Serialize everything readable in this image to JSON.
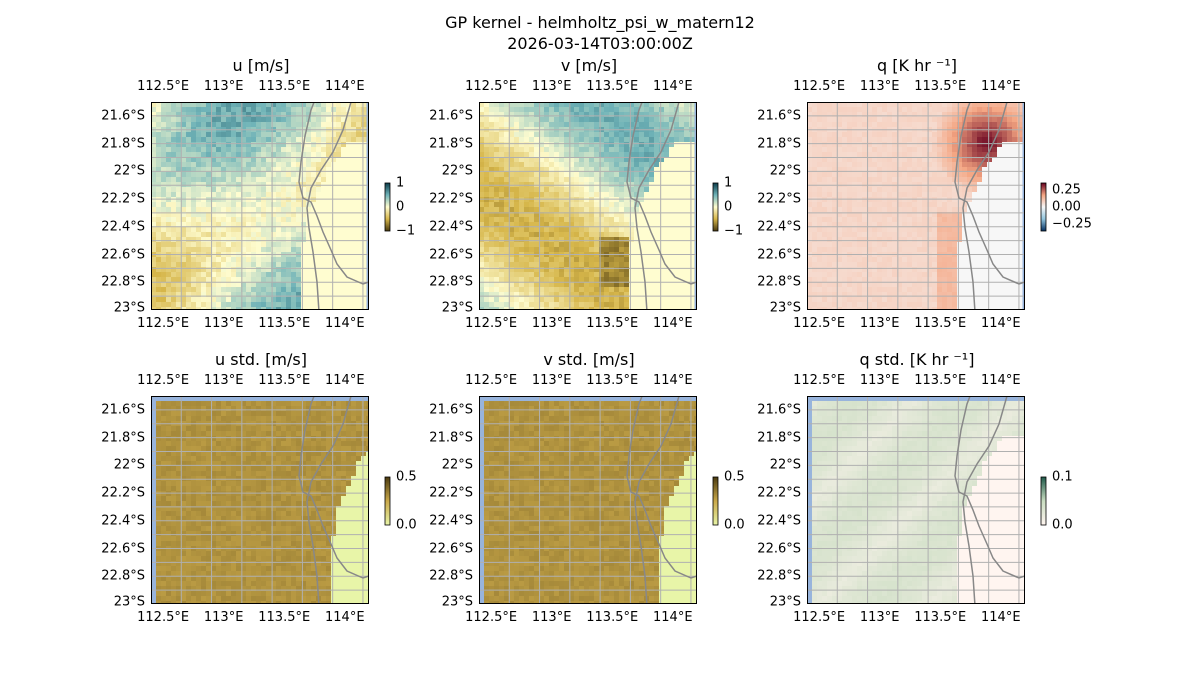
{
  "figure": {
    "title_line1": "GP kernel - helmholtz_psi_w_matern12",
    "title_line2": "2026-03-14T03:00:00Z"
  },
  "axes": {
    "lon_labels": [
      "112.5°E",
      "113°E",
      "113.5°E",
      "114°E"
    ],
    "lon_values": [
      112.5,
      113.0,
      113.5,
      114.0
    ],
    "lat_labels": [
      "21.6°S",
      "21.8°S",
      "22°S",
      "22.2°S",
      "22.4°S",
      "22.6°S",
      "22.8°S",
      "23°S"
    ],
    "lat_values": [
      -21.6,
      -21.8,
      -22.0,
      -22.2,
      -22.4,
      -22.6,
      -22.8,
      -23.0
    ],
    "lon_range": [
      112.4,
      114.2
    ],
    "lat_range": [
      -23.0,
      -21.5
    ],
    "gridlines": true
  },
  "panels": [
    {
      "id": "u",
      "title": "u [m/s]",
      "field": "u",
      "colorbar": {
        "ticks": [
          "1",
          "0",
          "−1"
        ],
        "tick_values": [
          1,
          0,
          -1
        ],
        "range": [
          -1,
          1
        ],
        "colors": [
          "#0b3c4a",
          "#6fb3b8",
          "#fffdd0",
          "#d6b64a",
          "#4a3a10"
        ]
      }
    },
    {
      "id": "v",
      "title": "v [m/s]",
      "field": "v",
      "colorbar": {
        "ticks": [
          "1",
          "0",
          "−1"
        ],
        "tick_values": [
          1,
          0,
          -1
        ],
        "range": [
          -1,
          1
        ],
        "colors": [
          "#0b3c4a",
          "#6fb3b8",
          "#fffdd0",
          "#d6b64a",
          "#4a3a10"
        ]
      }
    },
    {
      "id": "q",
      "title": "q [K hr ⁻¹]",
      "field": "q",
      "colorbar": {
        "ticks": [
          "0.25",
          "0.00",
          "−0.25"
        ],
        "tick_values": [
          0.25,
          0,
          -0.25
        ],
        "range": [
          -0.35,
          0.35
        ],
        "colors": [
          "#053061",
          "#92c5de",
          "#f7f7f7",
          "#f4a582",
          "#67001f"
        ]
      }
    },
    {
      "id": "u_std",
      "title": "u std. [m/s]",
      "field": "u_std",
      "colorbar": {
        "ticks": [
          "0.5",
          "0.0"
        ],
        "tick_values": [
          0.5,
          0.0
        ],
        "range": [
          0,
          0.5
        ],
        "colors": [
          "#e8f5a8",
          "#c9a84a",
          "#4a3a10"
        ]
      }
    },
    {
      "id": "v_std",
      "title": "v std. [m/s]",
      "field": "v_std",
      "colorbar": {
        "ticks": [
          "0.5",
          "0.0"
        ],
        "tick_values": [
          0.5,
          0.0
        ],
        "range": [
          0,
          0.5
        ],
        "colors": [
          "#e8f5a8",
          "#c9a84a",
          "#4a3a10"
        ]
      }
    },
    {
      "id": "q_std",
      "title": "q std. [K hr ⁻¹]",
      "field": "q_std",
      "colorbar": {
        "ticks": [
          "0.1",
          "0.0"
        ],
        "tick_values": [
          0.1,
          0.0
        ],
        "range": [
          0,
          0.1
        ],
        "colors": [
          "#fff5f0",
          "#c8dcc0",
          "#1f5a4a"
        ]
      }
    }
  ],
  "colors": {
    "ocean_edge": "#98b4dc",
    "coastline": "#888888",
    "grid": "#b0b0b0",
    "land_u": "#fffdd0",
    "land_std": "#e8f5a8",
    "land_q": "#f5f5f5",
    "land_qstd": "#fff5f0"
  }
}
